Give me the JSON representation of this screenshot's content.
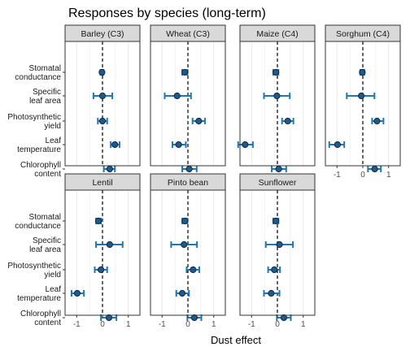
{
  "chart_data": {
    "type": "scatter",
    "title": "Responses by species (long-term)",
    "xlabel": "Dust effect",
    "ylabel": "",
    "xlim": [
      -1.45,
      1.45
    ],
    "x_ticks": [
      "-1",
      "0",
      "1"
    ],
    "reference_line": 0,
    "grid": true,
    "categories": [
      [
        "Stomatal",
        "conductance"
      ],
      [
        "Specific",
        "leaf area"
      ],
      [
        "Photosynthetic",
        "yield"
      ],
      [
        "Leaf",
        "temperature"
      ],
      [
        "Chlorophyll",
        "content"
      ]
    ],
    "colors": {
      "point_fill": "#1f5a8a",
      "error_bar": "#1f78b4",
      "strip_fill": "#d9d9d9",
      "grid": "#e8e8e8",
      "border": "#333333"
    },
    "panels": [
      {
        "name": "Barley (C3)",
        "points": [
          {
            "x": -0.02,
            "lo": -0.08,
            "hi": 0.04
          },
          {
            "x": 0.0,
            "lo": -0.35,
            "hi": 0.38
          },
          {
            "x": 0.0,
            "lo": -0.18,
            "hi": 0.18
          },
          {
            "x": 0.48,
            "lo": 0.32,
            "hi": 0.66
          },
          {
            "x": 0.28,
            "lo": 0.05,
            "hi": 0.48
          }
        ]
      },
      {
        "name": "Wheat (C3)",
        "points": [
          {
            "x": -0.12,
            "lo": -0.22,
            "hi": -0.02
          },
          {
            "x": -0.42,
            "lo": -0.9,
            "hi": 0.12
          },
          {
            "x": 0.42,
            "lo": 0.18,
            "hi": 0.66
          },
          {
            "x": -0.36,
            "lo": -0.6,
            "hi": -0.08
          },
          {
            "x": 0.05,
            "lo": -0.22,
            "hi": 0.34
          }
        ]
      },
      {
        "name": "Maize (C4)",
        "points": [
          {
            "x": -0.06,
            "lo": -0.16,
            "hi": 0.04
          },
          {
            "x": -0.02,
            "lo": -0.52,
            "hi": 0.48
          },
          {
            "x": 0.4,
            "lo": 0.18,
            "hi": 0.62
          },
          {
            "x": -1.25,
            "lo": -1.52,
            "hi": -0.95
          },
          {
            "x": 0.05,
            "lo": -0.22,
            "hi": 0.34
          }
        ]
      },
      {
        "name": "Sorghum (C4)",
        "points": [
          {
            "x": -0.02,
            "lo": -0.1,
            "hi": 0.06
          },
          {
            "x": -0.06,
            "lo": -0.62,
            "hi": 0.45
          },
          {
            "x": 0.55,
            "lo": 0.36,
            "hi": 0.8
          },
          {
            "x": -0.98,
            "lo": -1.3,
            "hi": -0.72
          },
          {
            "x": 0.46,
            "lo": 0.2,
            "hi": 0.7
          }
        ]
      },
      {
        "name": "Lentil",
        "points": [
          {
            "x": -0.16,
            "lo": -0.25,
            "hi": -0.06
          },
          {
            "x": 0.28,
            "lo": -0.25,
            "hi": 0.78
          },
          {
            "x": -0.06,
            "lo": -0.3,
            "hi": 0.18
          },
          {
            "x": -0.98,
            "lo": -1.2,
            "hi": -0.72
          },
          {
            "x": 0.25,
            "lo": -0.06,
            "hi": 0.54
          }
        ]
      },
      {
        "name": "Pinto bean",
        "points": [
          {
            "x": -0.12,
            "lo": -0.22,
            "hi": -0.02
          },
          {
            "x": -0.15,
            "lo": -0.65,
            "hi": 0.35
          },
          {
            "x": 0.2,
            "lo": -0.05,
            "hi": 0.44
          },
          {
            "x": -0.22,
            "lo": -0.45,
            "hi": 0.04
          },
          {
            "x": 0.25,
            "lo": -0.02,
            "hi": 0.52
          }
        ]
      },
      {
        "name": "Sunflower",
        "points": [
          {
            "x": -0.06,
            "lo": -0.16,
            "hi": 0.04
          },
          {
            "x": 0.08,
            "lo": -0.45,
            "hi": 0.6
          },
          {
            "x": -0.12,
            "lo": -0.36,
            "hi": 0.1
          },
          {
            "x": -0.24,
            "lo": -0.52,
            "hi": 0.08
          },
          {
            "x": 0.25,
            "lo": -0.02,
            "hi": 0.52
          }
        ]
      }
    ]
  }
}
